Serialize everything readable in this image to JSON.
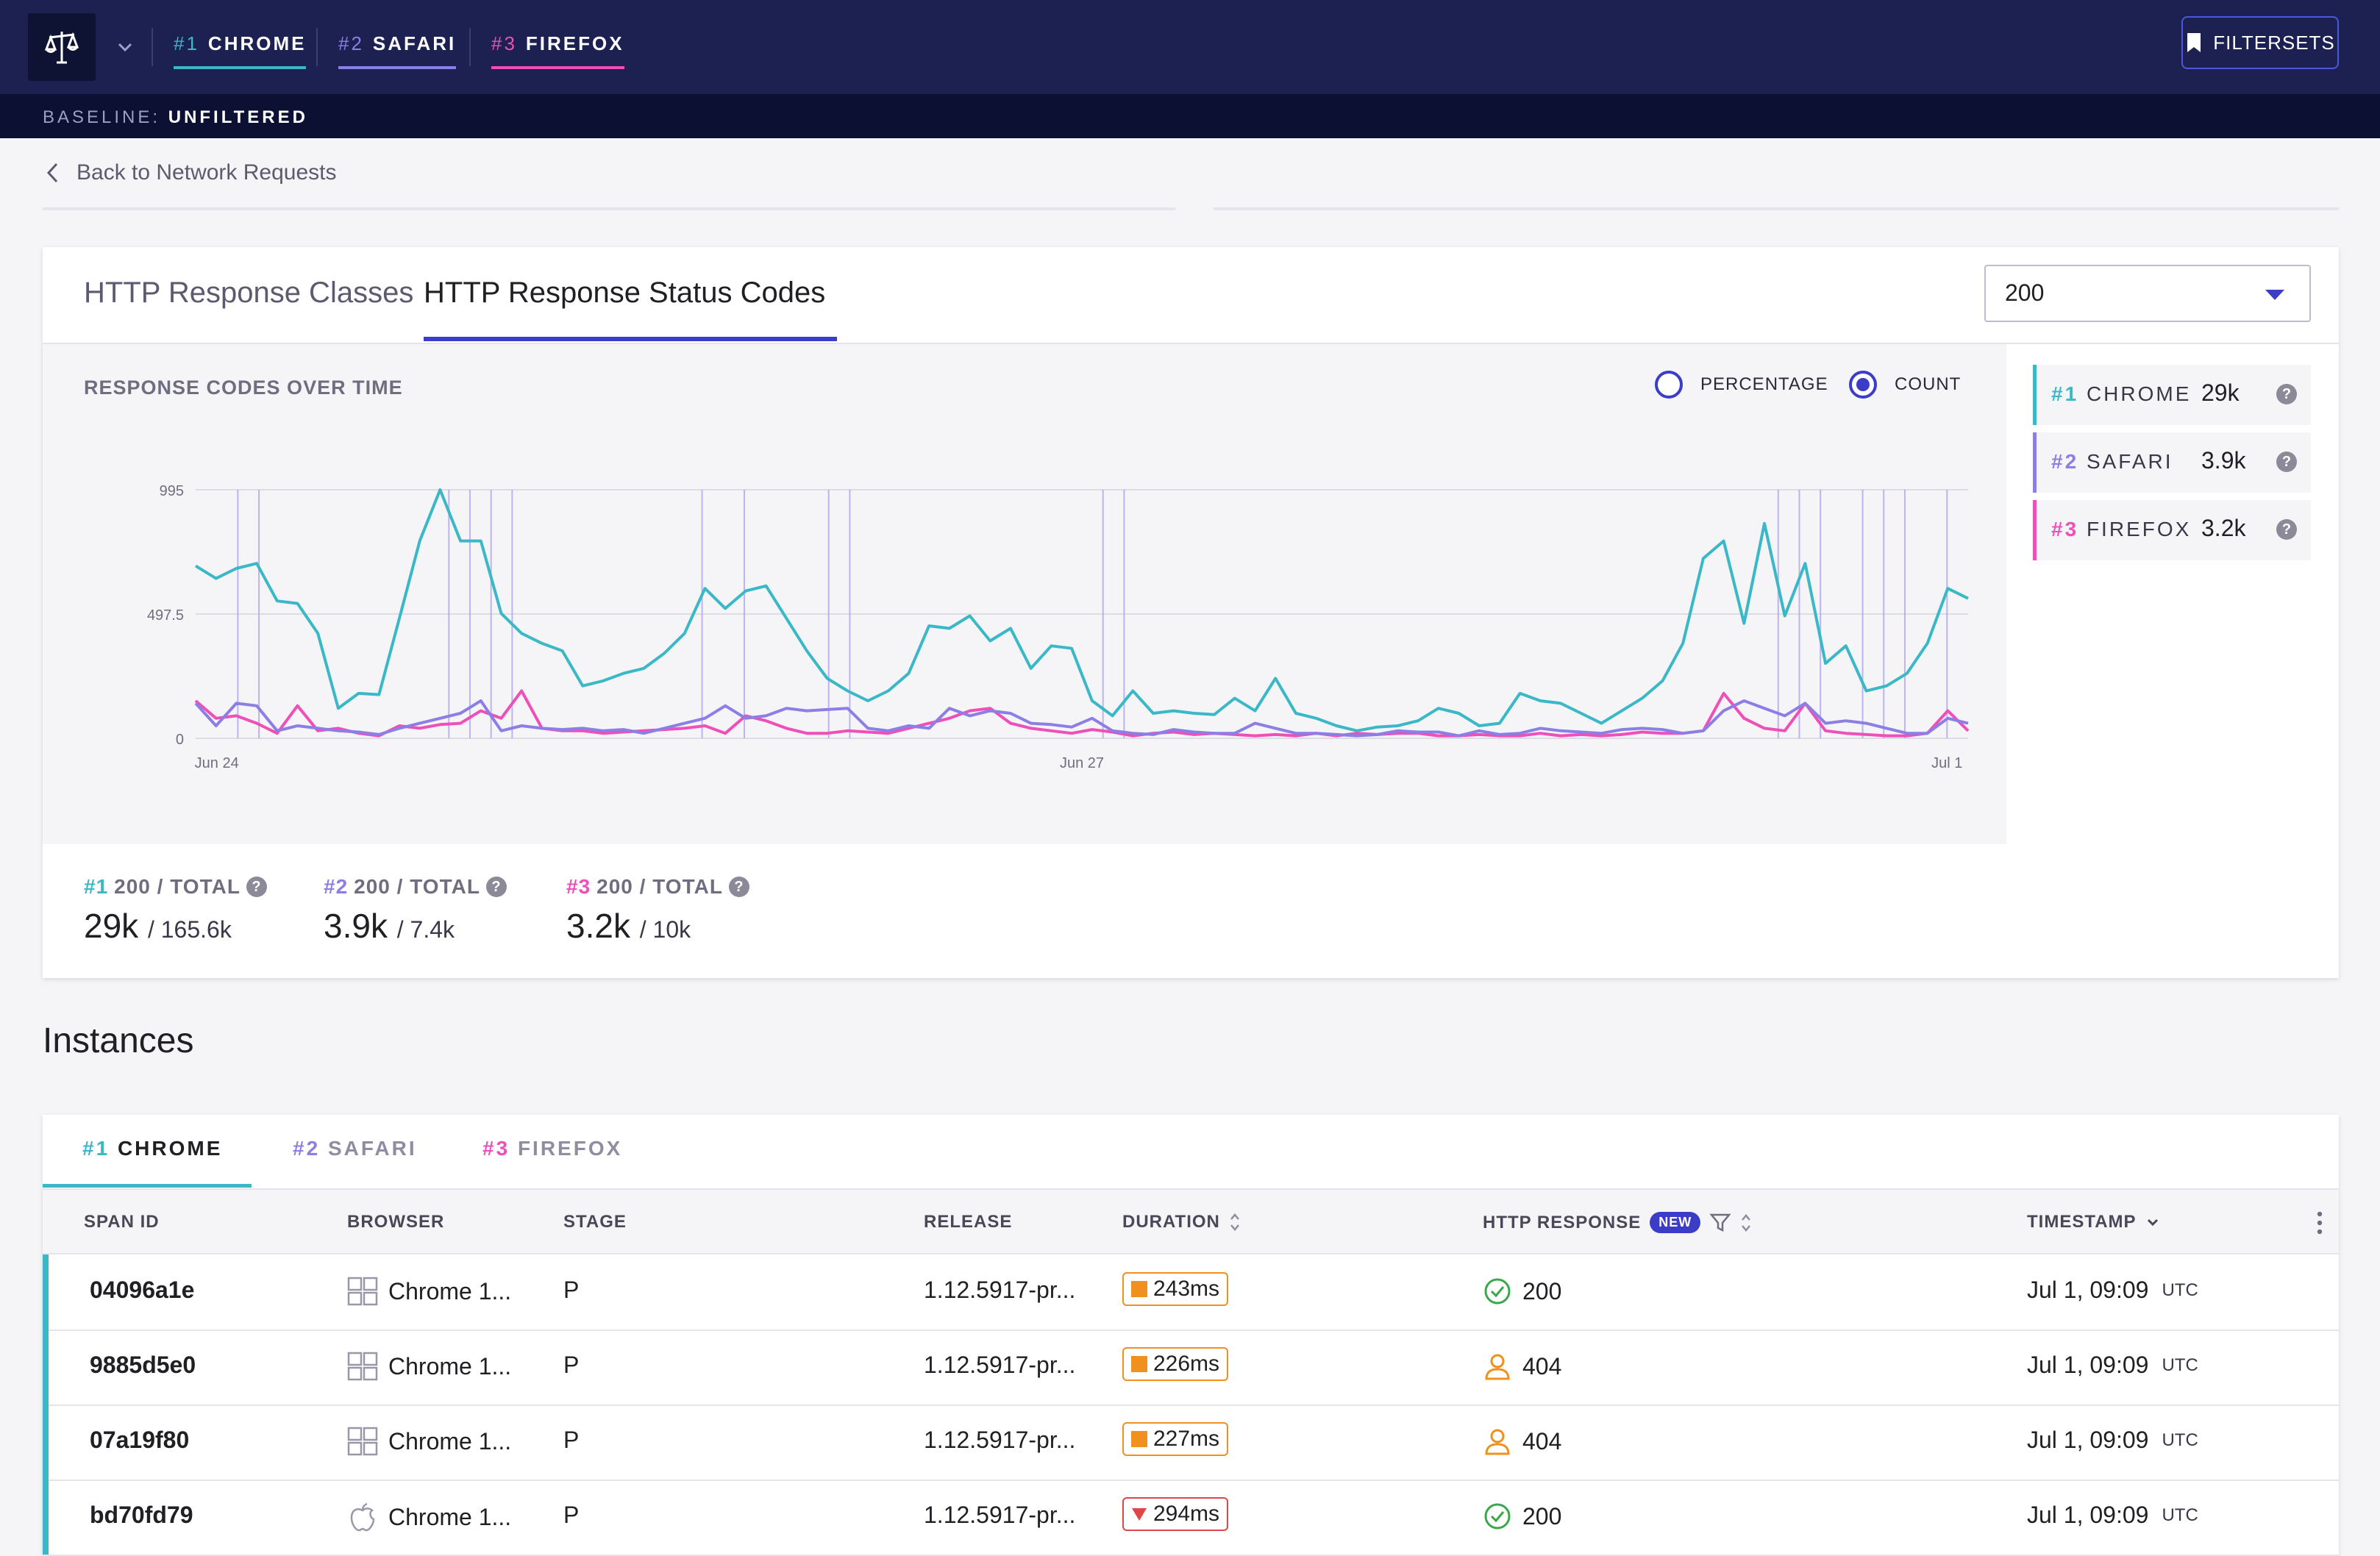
{
  "header": {
    "tabs": [
      {
        "num": "#1",
        "label": "CHROME",
        "color": "#3ab8c8"
      },
      {
        "num": "#2",
        "label": "SAFARI",
        "color": "#8b7fe6"
      },
      {
        "num": "#3",
        "label": "FIREFOX",
        "color": "#ef4fb9"
      }
    ],
    "filtersets_label": "FILTERSETS",
    "baseline_label": "BASELINE:",
    "baseline_value": "UNFILTERED"
  },
  "back_link": "Back to Network Requests",
  "card": {
    "tabs": [
      "HTTP Response Classes",
      "HTTP Response Status Codes"
    ],
    "active_tab": "HTTP Response Status Codes",
    "dropdown_value": "200",
    "chart_title": "RESPONSE CODES OVER TIME",
    "radio_percentage": "PERCENTAGE",
    "radio_count": "COUNT",
    "legend": [
      {
        "num": "#1",
        "label": "CHROME",
        "count": "29k",
        "color": "#3ab8c8"
      },
      {
        "num": "#2",
        "label": "SAFARI",
        "count": "3.9k",
        "color": "#8b7fe6"
      },
      {
        "num": "#3",
        "label": "FIREFOX",
        "count": "3.2k",
        "color": "#ef4fb9"
      }
    ],
    "stats": [
      {
        "num": "#1",
        "label": "200 / TOTAL",
        "value": "29k",
        "total": "/ 165.6k",
        "color": "#3ab8c8"
      },
      {
        "num": "#2",
        "label": "200 / TOTAL",
        "value": "3.9k",
        "total": "/ 7.4k",
        "color": "#8b7fe6"
      },
      {
        "num": "#3",
        "label": "200 / TOTAL",
        "value": "3.2k",
        "total": "/ 10k",
        "color": "#ef4fb9"
      }
    ],
    "help_glyph": "?"
  },
  "chart_data": {
    "type": "line",
    "title": "RESPONSE CODES OVER TIME",
    "xlabel": "",
    "ylabel": "",
    "ylim": [
      0,
      995
    ],
    "y_ticks": [
      "0",
      "497.5",
      "995"
    ],
    "x_ticks": [
      "Jun 24",
      "Jun 27",
      "Jul 1"
    ],
    "x_range": [
      0,
      84
    ],
    "x_tick_positions": [
      1,
      42,
      83
    ],
    "series": [
      {
        "name": "#1 CHROME",
        "color": "#3ab8c8",
        "values": [
          690,
          640,
          680,
          700,
          550,
          540,
          420,
          120,
          180,
          175,
          480,
          790,
          995,
          790,
          790,
          500,
          420,
          380,
          350,
          210,
          230,
          260,
          280,
          340,
          420,
          600,
          520,
          590,
          610,
          480,
          350,
          240,
          190,
          150,
          190,
          260,
          450,
          440,
          490,
          390,
          440,
          280,
          370,
          360,
          150,
          90,
          190,
          100,
          110,
          100,
          95,
          160,
          110,
          240,
          100,
          80,
          50,
          30,
          45,
          50,
          70,
          120,
          100,
          50,
          60,
          180,
          150,
          140,
          100,
          60,
          110,
          160,
          230,
          380,
          720,
          790,
          460,
          860,
          490,
          700,
          300,
          370,
          190,
          210,
          260,
          380,
          600,
          560
        ]
      },
      {
        "name": "#2 SAFARI",
        "color": "#8b7fe6",
        "values": [
          140,
          50,
          140,
          130,
          30,
          50,
          40,
          30,
          25,
          15,
          40,
          60,
          80,
          100,
          150,
          30,
          50,
          40,
          35,
          40,
          30,
          35,
          20,
          40,
          60,
          80,
          130,
          80,
          90,
          120,
          110,
          115,
          120,
          40,
          30,
          50,
          40,
          120,
          90,
          110,
          100,
          60,
          55,
          45,
          80,
          30,
          20,
          15,
          35,
          25,
          20,
          20,
          60,
          40,
          20,
          20,
          15,
          10,
          15,
          30,
          25,
          25,
          10,
          30,
          15,
          20,
          40,
          30,
          25,
          20,
          35,
          40,
          35,
          20,
          30,
          110,
          150,
          120,
          90,
          140,
          60,
          70,
          60,
          40,
          20,
          20,
          80,
          60
        ]
      },
      {
        "name": "#3 FIREFOX",
        "color": "#ef4fb9",
        "values": [
          150,
          80,
          90,
          60,
          20,
          130,
          30,
          40,
          20,
          10,
          50,
          40,
          55,
          60,
          110,
          80,
          190,
          40,
          30,
          30,
          20,
          25,
          30,
          35,
          40,
          50,
          20,
          90,
          70,
          40,
          20,
          20,
          30,
          25,
          20,
          40,
          60,
          80,
          110,
          120,
          60,
          40,
          30,
          20,
          35,
          25,
          10,
          20,
          25,
          15,
          20,
          15,
          10,
          15,
          10,
          20,
          10,
          20,
          15,
          20,
          20,
          10,
          10,
          15,
          10,
          10,
          20,
          10,
          15,
          10,
          15,
          25,
          20,
          20,
          30,
          180,
          80,
          40,
          30,
          140,
          30,
          20,
          15,
          10,
          10,
          20,
          110,
          30
        ]
      }
    ],
    "markers": [
      2,
      3,
      12,
      13,
      14,
      15,
      24,
      26,
      30,
      31,
      43,
      44,
      75,
      76,
      77,
      79,
      80,
      81,
      83
    ]
  },
  "instances_title": "Instances",
  "table": {
    "tabs": [
      {
        "num": "#1",
        "label": "CHROME",
        "color": "#3ab8c8"
      },
      {
        "num": "#2",
        "label": "SAFARI",
        "color": "#8b7fe6"
      },
      {
        "num": "#3",
        "label": "FIREFOX",
        "color": "#ef4fb9"
      }
    ],
    "columns": {
      "span_id": "SPAN ID",
      "browser": "BROWSER",
      "stage": "STAGE",
      "release": "RELEASE",
      "duration": "DURATION",
      "http_response": "HTTP RESPONSE",
      "new_badge": "NEW",
      "timestamp": "TIMESTAMP"
    },
    "rows": [
      {
        "span_id": "04096a1e",
        "os_icon": "windows-icon",
        "browser": "Chrome 1...",
        "stage": "P",
        "release": "1.12.5917-pr...",
        "duration": "243ms",
        "duration_flag": "square",
        "status_icon": "check-circle-icon",
        "status": "200",
        "timestamp": "Jul 1, 09:09",
        "tz": "UTC"
      },
      {
        "span_id": "9885d5e0",
        "os_icon": "windows-icon",
        "browser": "Chrome 1...",
        "stage": "P",
        "release": "1.12.5917-pr...",
        "duration": "226ms",
        "duration_flag": "square",
        "status_icon": "user-icon",
        "status": "404",
        "timestamp": "Jul 1, 09:09",
        "tz": "UTC"
      },
      {
        "span_id": "07a19f80",
        "os_icon": "windows-icon",
        "browser": "Chrome 1...",
        "stage": "P",
        "release": "1.12.5917-pr...",
        "duration": "227ms",
        "duration_flag": "square",
        "status_icon": "user-icon",
        "status": "404",
        "timestamp": "Jul 1, 09:09",
        "tz": "UTC"
      },
      {
        "span_id": "bd70fd79",
        "os_icon": "apple-icon",
        "browser": "Chrome 1...",
        "stage": "P",
        "release": "1.12.5917-pr...",
        "duration": "294ms",
        "duration_flag": "down-triangle",
        "status_icon": "check-circle-icon",
        "status": "200",
        "timestamp": "Jul 1, 09:09",
        "tz": "UTC"
      }
    ]
  }
}
